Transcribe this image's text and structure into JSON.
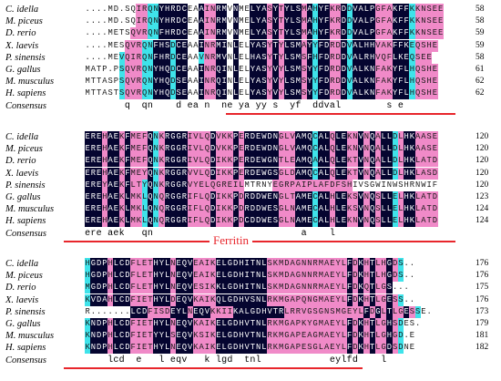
{
  "species": [
    "C. idella",
    "M. piceus",
    "D. rerio",
    "X. laevis",
    "P. sinensis",
    "G. gallus",
    "M. musculus",
    "H. sapiens"
  ],
  "consensus_label": "Consensus",
  "domain_label": "Ferritin",
  "colors": {
    "full": "#050530",
    "high": "#f08ac8",
    "mid": "#3fe3ea",
    "domain_line": "#e8262c"
  },
  "blocks": [
    {
      "rows": [
        {
          "seq": "....MD.SQIRQNYHRDCEAAINRMVNMELYASYTYLSMAHYFKRDDVALPGFAKFFKKNSEE",
          "cls": "nnnnnnnnnhhmmfffffnnfhhffnfnnfffhfhfffhfmffhhfmffffhhhfffmhhhhhhff",
          "num": "58"
        },
        {
          "seq": "....MD.SQIRQNYHRDCEAAINRMVNMELYASYTYLSMAHYFKRDDVALPGFAKFFKKNSEE",
          "cls": "nnnnnnnnnhhmmfffffnnfhhffnfnnfffhfhfffhfmffhhfmffffhhhfffmhhhhhhff",
          "num": "58"
        },
        {
          "seq": "....METSQVRQNFHRDCEAAINRMVNMELYASYTYLSMAHYFKRDDVALPGFAKFFKKNSEE",
          "cls": "nnnnnnnnhhhmmfffffnnfhhffnfnnfffhfhfffhfmffhhfmffffhhhfffmhhhhhhff",
          "num": "59"
        },
        {
          "seq": "....MESQVRQNFHSDCEAAINRMINLELYASYTYLSMAYYFDRDDVALHHVAKFFKEQSHE",
          "cls": "nnnnnnnhhhmmfffmffnnfhhffnfnnfffhfhfffhfmffhhfmffffhhhfffmhhhhhhf",
          "num": "59"
        },
        {
          "seq": "....MEVQIRQNFHRDCEAAVNRMVNLELHASYTYLSMSFHFDRDDVALRHVQFLKEQSEE",
          "cls": "nnnnnnmhhhmmfffmffnnmhhffnfnnfffhfhfffhfmffhhfmffffhhhfffmhhhhhf",
          "num": "58"
        },
        {
          "seq": "MATP.PSQVRQNYHQDCEAAINRQINLELYASYVYLSMSYYFDRDDVALKNFAKYFLHQSHE",
          "cls": "nnnnnnmhhhmmfffmffnnfhhffnfnnfffhfhfffhfmffhhfmffffhhhfffmhhhhhhf",
          "num": "61"
        },
        {
          "seq": "MTTASPSQVRQNYHQDSEAAINRQINLELYASYVYLSMSYYFDRDDVALKNFAKYFLHQSHE",
          "cls": "nnnnnnmhhhmmfffmffnnfhhffnfnnfffhfhfffhfmffhhfmffffhhhfffmhhhhhhf",
          "num": "62"
        },
        {
          "seq": "MTTASTSQVRQNYHQDSEAAINRQINLELYASYVYLSMSYYFDRDDVALKNFAKYFLHQSHE",
          "cls": "nnnnnnmhhhmmfffmffnnfhhffnfnnfffhfhfffhfmffhhfmffffhhhfffmhhhhhhf",
          "num": "62"
        }
      ],
      "consensus": "       q  qn    d ea n  ne ya yy s  yf  ddval        s e",
      "line": [
        248,
        500
      ]
    },
    {
      "rows": [
        {
          "seq": "EREHAEKFMEFQNKRGGRIVLQDVKKPERDEWDNGLVAMQCALQLEKNVNQALLDLHKAASE",
          "cls": "fffhffhfhhhfmhffffhhhhfhhhfhffffffhhhfffmffhffhhfhfhffmhffhhhhh",
          "num": "120"
        },
        {
          "seq": "EREHAEKFMEFQNKRGGRIVLQDVKKPERDEWDNGLVAMQCALQLEKNVNQALLDLHKAASE",
          "cls": "fffhffhfhhhfmhffffhhhhfhhhfhffffffhhhfffmffhffhhfhfhffmhffhhhhh",
          "num": "120"
        },
        {
          "seq": "EREHAEKFMEFQNKRGGRIVLQDIKKPERDEWGNTLEAMQAALQLEKTVNQALLDLHKLATD",
          "cls": "fffhffhfhhhfmhffffhhhhfhhhfhffffffhhhfffmffhffhhfhfhffmhffhhhhh",
          "num": "120"
        },
        {
          "seq": "EREHAEKFMEYQNKRGGRVVLQDIKKPERDEWGSGLDAMQCALQLEKTVNQALLDLHKLASD",
          "cls": "fffhffhfhhhfmhffffhhhhfhhhfhffffffhhhfffmffhffhhfhfhffmhffhhhhh",
          "num": "120"
        },
        {
          "seq": "EREYAEKFLTYQNKRGGRVYELQGREILMTRNYEGRPAIPLAFDFSHIVSGWINWSHRNWIF",
          "cls": "fffhffhfhhmfmhffffhhhhhhhhhhnnnnnhhhhhhhhhhhhhhnnnnnnnnnnnnnnn",
          "num": "120"
        },
        {
          "seq": "EREHAEKLMKLQNQRGGRIFLQDIKKPDRDDWENGLTAMECALHLEKSVNQSLLELHKLATD",
          "cls": "fffhffhfhhmfmhffffhhhhfhhhfhffffffhhhfffmffhffhhfhfhffmhffhhhhh",
          "num": "123"
        },
        {
          "seq": "EREHAEKLMKLQNQRGGRIFLQDIKKPDRDDWESGLNAMECALHLEKSVNQSLLELHKLATD",
          "cls": "fffhffhfhhmfmhffffhhhhfhhhfhffffffhhhfffmffhffhhfhfhffmhffhhhhh",
          "num": "124"
        },
        {
          "seq": "EREHAEKLMKLQNQRGGRIFLQDIKKPDCDDWESGLNAMECALHLEKNVNQSLLELHKLATD",
          "cls": "fffhffhfhhmfmhffffhhhhfhhhfhffffffhhhfffmffhffhhfhfhffmhffhhhhh",
          "num": "124"
        }
      ],
      "consensus": "ere aek   qn                          a    l",
      "line": [
        70,
        500
      ],
      "label_x": 230
    },
    {
      "rows": [
        {
          "seq": "HGDPHLCDFLETHYLNEQVEAIKELGDHITNLSKMDAGNNRMAEYLFDKHTLHGDS..",
          "cls": "mfffhfffhhhhfffhfffhhhhfffffffffhhhhhhhhhhhhhhfhfhfhhfhmnn",
          "num": "176"
        },
        {
          "seq": "HGDPHLCDFLETHYLNEQVEAIKELGDHITNLSKMDAGNNRMAEYLFDKHTLHGDS..",
          "cls": "mfffhfffhhhhfffhfffhhhhfffffffffhhhhhhhhhhhhhhfhfhfhhfhmnn",
          "num": "176"
        },
        {
          "seq": "MGDPHLCDFLETHYLNEQVESIKKLGDHITNLSKMDAGNNRMAEYLFDKQTLGS...",
          "cls": "mfffhfffhhhhfffhfffhhhhfffffffffhhhhhhhhhhhhhhfhfhfhhfnnn",
          "num": "175"
        },
        {
          "seq": "KVDAHLCDFIETHYLDEQVKAIKQLGDHVSNLRKMGAPQNGMAEYLFDKHTLGESS..",
          "cls": "mfffhfffhhhhfffhfffhhhhfffffffffhhhhhhhhhhhhhhfhfhfhhfhmnn",
          "num": "176"
        },
        {
          "seq": "R.......LCDFISDEYLNEQVKKIIKALGDHVTRLRRVGSGNSMGEYLFDGLTLGESSE.",
          "cls": "nnnnnnnnfffhhhhfffhfffhhhhfffffffffhhhhhhhhhhhhhhfhfhfhhfhmn",
          "num": "173"
        },
        {
          "seq": "KNDPHLCDFIETHYLNEQVKAIKELGDHVTNLRKMGAPKYGMAEYLFDKHTLGHSDES.",
          "cls": "mfffhfffhhhhfffhfffhhhhfffffffffhhhhhhhhhhhhhhfhfhfhhfhmnn",
          "num": "179"
        },
        {
          "seq": "KNDPHLCDFIETYYLSEQVKSIKELGDHVTNLRKMGAPEAGMAEYLFDKHTLGHGD.E",
          "cls": "mfffhfffhhhhfffhfffhhhhfffffffffhhhhhhhhhhhhhhfhfhfhhfhmnn",
          "num": "181"
        },
        {
          "seq": "KNDPHLCDFIETHYLNEQVKAIKELGDHVTNLRKMGAPESGLAEYLFDKHTLGDSDNE",
          "cls": "mfffhfffhhhhfffhfffhhhhfffffffffhhhhhhhhhhhhhhfhfhfhhfhmnn",
          "num": "182"
        }
      ],
      "consensus": "    lcd  e   l eqv   k lgd  tnl            eylfd    l",
      "line": [
        70,
        398
      ]
    }
  ]
}
